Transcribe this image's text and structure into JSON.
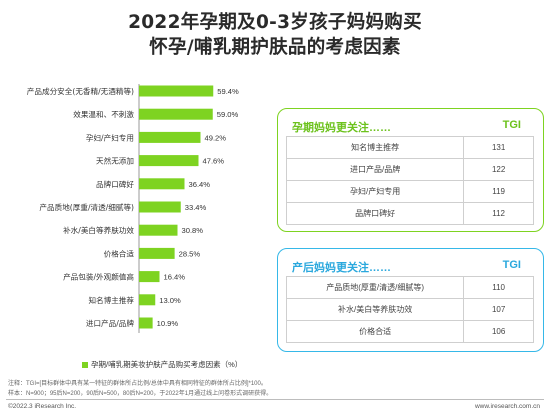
{
  "title_line1": "2022年孕期及0-3岁孩子妈妈购买",
  "title_line2": "怀孕/哺乳期护肤品的考虑因素",
  "chart_data": {
    "type": "bar",
    "orientation": "horizontal",
    "categories": [
      "产品成分安全(无香精/无酒精等)",
      "效果温和、不刺激",
      "孕妇/产妇专用",
      "天然无添加",
      "品牌口碑好",
      "产品质地(厚重/清透/细腻等)",
      "补水/美白等养肤功效",
      "价格合适",
      "产品包装/外观颜值高",
      "知名博主推荐",
      "进口产品/品牌"
    ],
    "values": [
      59.4,
      59.0,
      49.2,
      47.6,
      36.4,
      33.4,
      30.8,
      28.5,
      16.4,
      13.0,
      10.9
    ],
    "value_labels": [
      "59.4%",
      "59.0%",
      "49.2%",
      "47.6%",
      "36.4%",
      "33.4%",
      "30.8%",
      "28.5%",
      "16.4%",
      "13.0%",
      "10.9%"
    ],
    "xlim": [
      0,
      60
    ],
    "legend": "孕期/哺乳期美妆护肤产品购买考虑因素（%）",
    "legend_position": "bottom",
    "bar_color": "#7ed321"
  },
  "pregnancy_box": {
    "title": "孕期妈妈更关注……",
    "tgi_label": "TGI",
    "rows": [
      {
        "name": "知名博主推荐",
        "tgi": "131"
      },
      {
        "name": "进口产品/品牌",
        "tgi": "122"
      },
      {
        "name": "孕妇/产妇专用",
        "tgi": "119"
      },
      {
        "name": "品牌口碑好",
        "tgi": "112"
      }
    ]
  },
  "postpartum_box": {
    "title": "产后妈妈更关注……",
    "tgi_label": "TGI",
    "rows": [
      {
        "name": "产品质地(厚重/清透/细腻等)",
        "tgi": "110"
      },
      {
        "name": "补水/美白等养肤功效",
        "tgi": "107"
      },
      {
        "name": "价格合适",
        "tgi": "106"
      }
    ]
  },
  "note_line1": "注释：TGI=[目标群体中具有某一特征的群体所占比例/总体中具有相同特征的群体所占比例]*100。",
  "note_line2": "样本：N=900；95后N=200，90后N=500，80后N=200，于2022年1月通过线上问卷形式调研获得。",
  "footer_left": "©2022.3 iResearch Inc.",
  "footer_right": "www.iresearch.com.cn",
  "colors": {
    "green": "#7ed321",
    "blue": "#36b8e8"
  }
}
